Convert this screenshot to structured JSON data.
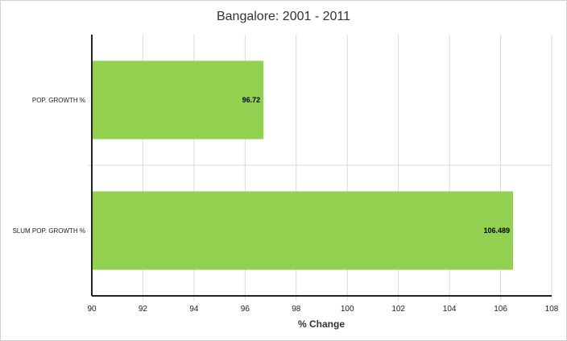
{
  "chart_data": {
    "type": "bar",
    "orientation": "horizontal",
    "title": "Bangalore: 2001 - 2011",
    "xlabel": "% Change",
    "ylabel": "",
    "categories": [
      "POP. GROWTH %",
      "SLUM POP. GROWTH %"
    ],
    "values": [
      96.72,
      106.489
    ],
    "data_labels": [
      "96.72",
      "106.489"
    ],
    "xlim": [
      90,
      108
    ],
    "xticks": [
      "90",
      "92",
      "94",
      "96",
      "98",
      "100",
      "102",
      "104",
      "106",
      "108"
    ],
    "grid": true,
    "legend": "none",
    "colors": {
      "bar": "#92d050",
      "grid": "#d9d9d9",
      "axis": "#222222"
    }
  }
}
